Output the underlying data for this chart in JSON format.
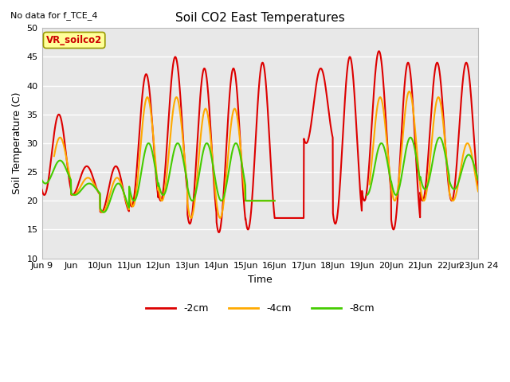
{
  "title": "Soil CO2 East Temperatures",
  "xlabel": "Time",
  "ylabel": "Soil Temperature (C)",
  "top_left_text": "No data for f_TCE_4",
  "annotation_box": "VR_soilco2",
  "ylim": [
    10,
    50
  ],
  "yticks": [
    10,
    15,
    20,
    25,
    30,
    35,
    40,
    45,
    50
  ],
  "color_2cm": "#dd0000",
  "color_4cm": "#ffaa00",
  "color_8cm": "#44cc00",
  "legend_labels": [
    "-2cm",
    "-4cm",
    "-8cm"
  ],
  "bg_color": "#e8e8e8",
  "grid_color": "#ffffff",
  "annotation_box_color": "#ffff99",
  "annotation_box_edge": "#999900",
  "annotation_text_color": "#cc0000",
  "figsize": [
    6.4,
    4.8
  ],
  "dpi": 100
}
